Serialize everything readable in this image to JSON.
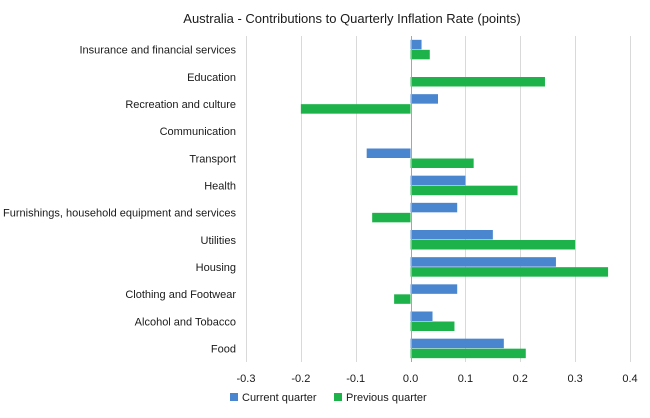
{
  "chart_data": {
    "type": "bar",
    "orientation": "horizontal",
    "title": "Australia - Contributions to Quarterly Inflation Rate (points)",
    "xlabel": "",
    "ylabel": "",
    "xlim": [
      -0.3,
      0.4
    ],
    "xticks": [
      -0.3,
      -0.2,
      -0.1,
      0.0,
      0.1,
      0.2,
      0.3,
      0.4
    ],
    "xtick_labels": [
      "-0.3",
      "-0.2",
      "-0.1",
      "0.0",
      "0.1",
      "0.2",
      "0.3",
      "0.4"
    ],
    "grid": true,
    "legend_position": "bottom",
    "categories": [
      "Insurance and financial services",
      "Education",
      "Recreation and culture",
      "Communication",
      "Transport",
      "Health",
      "Furnishings, household equipment and services",
      "Utilities",
      "Housing",
      "Clothing and Footwear",
      "Alcohol and Tobacco",
      "Food"
    ],
    "series": [
      {
        "name": "Current quarter",
        "color": "#4a86cf",
        "values": [
          0.02,
          0.0,
          0.05,
          0.0,
          -0.08,
          0.1,
          0.085,
          0.15,
          0.265,
          0.085,
          0.04,
          0.17
        ]
      },
      {
        "name": "Previous quarter",
        "color": "#1db34a",
        "values": [
          0.035,
          0.245,
          -0.2,
          0.0,
          0.115,
          0.195,
          -0.07,
          0.3,
          0.36,
          -0.03,
          0.08,
          0.21
        ]
      }
    ]
  }
}
